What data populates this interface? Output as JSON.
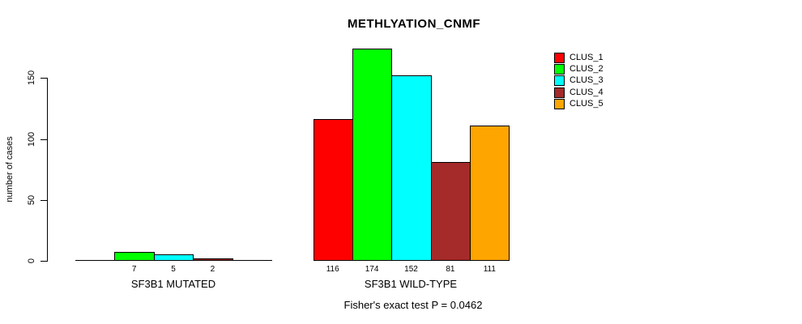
{
  "title": "METHLYATION_CNMF",
  "chart_data": {
    "type": "bar",
    "title": "METHLYATION_CNMF",
    "ylabel": "number of cases",
    "yticks": [
      0,
      50,
      100,
      150
    ],
    "ylim": [
      0,
      175
    ],
    "grid": false,
    "legend_position": "right",
    "groups": [
      "SF3B1 MUTATED",
      "SF3B1 WILD-TYPE"
    ],
    "series": [
      {
        "name": "CLUS_1",
        "color": "#FF0000",
        "values": [
          0,
          116
        ]
      },
      {
        "name": "CLUS_2",
        "color": "#00FF00",
        "values": [
          7,
          174
        ]
      },
      {
        "name": "CLUS_3",
        "color": "#00FFFF",
        "values": [
          5,
          152
        ]
      },
      {
        "name": "CLUS_4",
        "color": "#A52A2A",
        "values": [
          2,
          81
        ]
      },
      {
        "name": "CLUS_5",
        "color": "#FFA500",
        "values": [
          0,
          111
        ]
      }
    ],
    "show_bar_values": true,
    "zero_bars_drawn_as_flat_lines": true,
    "annotation": "Fisher's exact test P = 0.0462"
  }
}
